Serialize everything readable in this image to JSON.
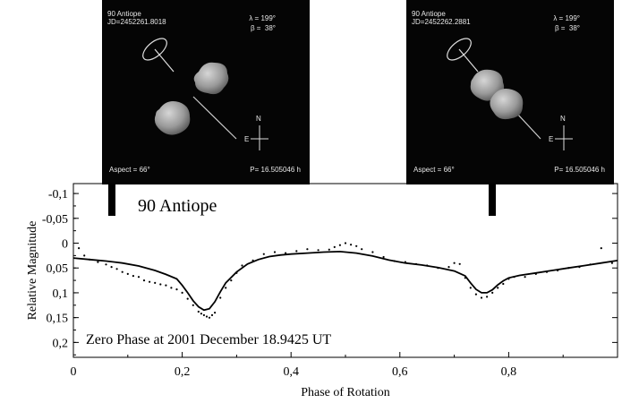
{
  "panels": [
    {
      "name": "90 Antiope",
      "jd": "JD=2452261.8018",
      "lambda": "λ = 199°",
      "beta": "β =  38°",
      "aspect": "Aspect = 66°",
      "period": "P= 16.505046 h",
      "compass_n": "N",
      "compass_e": "E"
    },
    {
      "name": "90 Antiope",
      "jd": "JD=2452262.2881",
      "lambda": "λ = 199°",
      "beta": "β =  38°",
      "aspect": "Aspect = 66°",
      "period": "P= 16.505046 h",
      "compass_n": "N",
      "compass_e": "E"
    }
  ],
  "chart_data": {
    "type": "line",
    "title": "90 Antiope",
    "annotation": "Zero Phase at 2001 December 18.9425 UT",
    "xlabel": "Phase of Rotation",
    "ylabel": "Relative Magnitude",
    "xlim": [
      0,
      1.0
    ],
    "ylim": [
      0.23,
      -0.12
    ],
    "x_ticks": [
      "0",
      "0,2",
      "0,4",
      "0,6",
      "0,8"
    ],
    "x_tick_values": [
      0,
      0.2,
      0.4,
      0.6,
      0.8
    ],
    "y_ticks": [
      "-0,1",
      "-0,05",
      "0",
      "0,05",
      "0,1",
      "0,15",
      "0,2"
    ],
    "y_tick_values": [
      -0.1,
      -0.05,
      0,
      0.05,
      0.1,
      0.15,
      0.2
    ],
    "phase_markers": [
      0.07,
      0.77
    ],
    "series": [
      {
        "kind": "model",
        "x": [
          0,
          0.03,
          0.06,
          0.09,
          0.12,
          0.15,
          0.17,
          0.19,
          0.2,
          0.21,
          0.22,
          0.23,
          0.24,
          0.25,
          0.26,
          0.27,
          0.28,
          0.3,
          0.32,
          0.34,
          0.36,
          0.38,
          0.4,
          0.43,
          0.46,
          0.49,
          0.52,
          0.55,
          0.58,
          0.61,
          0.64,
          0.67,
          0.7,
          0.72,
          0.73,
          0.74,
          0.75,
          0.76,
          0.77,
          0.78,
          0.79,
          0.8,
          0.82,
          0.85,
          0.88,
          0.91,
          0.94,
          0.97,
          1.0
        ],
        "y": [
          0.03,
          0.033,
          0.036,
          0.04,
          0.046,
          0.055,
          0.063,
          0.072,
          0.085,
          0.1,
          0.116,
          0.128,
          0.135,
          0.132,
          0.118,
          0.098,
          0.08,
          0.058,
          0.042,
          0.033,
          0.027,
          0.024,
          0.022,
          0.02,
          0.018,
          0.017,
          0.02,
          0.026,
          0.034,
          0.04,
          0.044,
          0.049,
          0.056,
          0.066,
          0.08,
          0.093,
          0.1,
          0.1,
          0.094,
          0.084,
          0.076,
          0.07,
          0.065,
          0.06,
          0.055,
          0.05,
          0.045,
          0.04,
          0.035
        ]
      },
      {
        "kind": "observations",
        "x": [
          0.01,
          0.02,
          0.03,
          0.045,
          0.06,
          0.07,
          0.08,
          0.09,
          0.1,
          0.11,
          0.12,
          0.13,
          0.14,
          0.15,
          0.16,
          0.17,
          0.18,
          0.19,
          0.2,
          0.21,
          0.22,
          0.23,
          0.235,
          0.24,
          0.245,
          0.25,
          0.255,
          0.26,
          0.27,
          0.28,
          0.29,
          0.3,
          0.31,
          0.33,
          0.35,
          0.37,
          0.39,
          0.41,
          0.43,
          0.45,
          0.47,
          0.48,
          0.49,
          0.5,
          0.51,
          0.52,
          0.53,
          0.55,
          0.57,
          0.59,
          0.61,
          0.63,
          0.65,
          0.67,
          0.69,
          0.7,
          0.71,
          0.72,
          0.73,
          0.74,
          0.75,
          0.76,
          0.77,
          0.78,
          0.79,
          0.8,
          0.81,
          0.83,
          0.85,
          0.87,
          0.89,
          0.91,
          0.93,
          0.95,
          0.97,
          0.99
        ],
        "y": [
          0.01,
          0.025,
          0.033,
          0.038,
          0.043,
          0.048,
          0.052,
          0.058,
          0.062,
          0.066,
          0.068,
          0.075,
          0.078,
          0.08,
          0.083,
          0.085,
          0.09,
          0.093,
          0.1,
          0.112,
          0.125,
          0.138,
          0.142,
          0.145,
          0.148,
          0.15,
          0.145,
          0.14,
          0.11,
          0.09,
          0.075,
          0.06,
          0.045,
          0.035,
          0.022,
          0.018,
          0.02,
          0.016,
          0.012,
          0.014,
          0.013,
          0.008,
          0.004,
          0.0,
          0.003,
          0.006,
          0.012,
          0.018,
          0.028,
          0.036,
          0.038,
          0.042,
          0.045,
          0.05,
          0.048,
          0.04,
          0.042,
          0.07,
          0.09,
          0.103,
          0.11,
          0.108,
          0.1,
          0.09,
          0.082,
          0.072,
          0.068,
          0.068,
          0.062,
          0.058,
          0.055,
          0.05,
          0.048,
          0.043,
          0.01,
          0.04
        ]
      }
    ]
  }
}
